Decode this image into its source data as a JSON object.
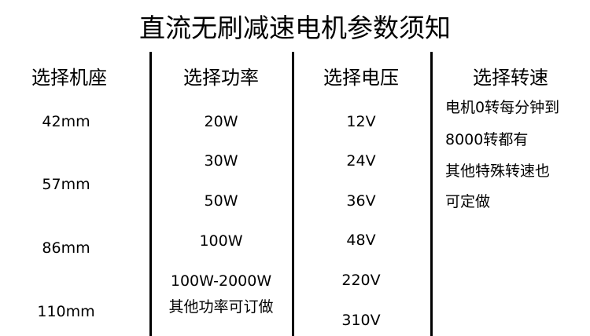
{
  "title": "直流无刷减速电机参数须知",
  "columns": [
    {
      "header": "选择机座",
      "values": [
        "42mm",
        "57mm",
        "86mm",
        "110mm"
      ]
    },
    {
      "header": "选择功率",
      "values": [
        "20W",
        "30W",
        "50W",
        "100W",
        "100W-2000W",
        "其他功率可订做"
      ]
    },
    {
      "header": "选择电压",
      "values": [
        "12V",
        "24V",
        "36V",
        "48V",
        "220V",
        "310V"
      ]
    },
    {
      "header": "选择转速",
      "values": [
        "电机0转每分钟到",
        "8000转都有",
        "其他特殊转速也",
        "可定做"
      ]
    }
  ]
}
